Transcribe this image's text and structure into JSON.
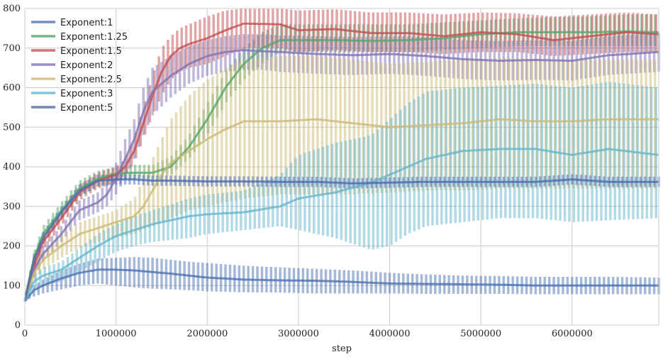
{
  "chart_data": {
    "type": "line",
    "title": "",
    "xlabel": "step",
    "ylabel": "",
    "xlim": [
      0,
      6950000
    ],
    "ylim": [
      0,
      800
    ],
    "xticks": [
      0,
      1000000,
      2000000,
      3000000,
      4000000,
      5000000,
      6000000
    ],
    "xtick_labels": [
      "0",
      "1000000",
      "2000000",
      "3000000",
      "4000000",
      "5000000",
      "6000000"
    ],
    "yticks": [
      0,
      100,
      200,
      300,
      400,
      500,
      600,
      700,
      800
    ],
    "ytick_labels": [
      "0",
      "100",
      "200",
      "300",
      "400",
      "500",
      "600",
      "700",
      "800"
    ],
    "grid": true,
    "legend_position": "top-left",
    "error_bars": "vertical range bars at each step",
    "series": [
      {
        "name": "Exponent:1",
        "color": "#4c72b0",
        "x": [
          0,
          100000,
          200000,
          400000,
          600000,
          800000,
          1000000,
          1200000,
          1400000,
          1600000,
          1800000,
          2000000,
          2400000,
          2800000,
          3200000,
          3600000,
          4000000,
          4400000,
          4800000,
          5200000,
          5600000,
          6000000,
          6400000,
          6950000
        ],
        "mean": [
          60,
          88,
          100,
          118,
          132,
          140,
          140,
          138,
          134,
          130,
          125,
          120,
          115,
          113,
          112,
          109,
          105,
          104,
          103,
          102,
          100,
          100,
          100,
          100
        ],
        "lower": [
          60,
          72,
          80,
          90,
          100,
          105,
          100,
          95,
          92,
          90,
          88,
          85,
          83,
          82,
          80,
          80,
          80,
          79,
          79,
          79,
          78,
          78,
          78,
          78
        ],
        "upper": [
          60,
          100,
          115,
          138,
          155,
          168,
          170,
          172,
          170,
          165,
          160,
          157,
          150,
          146,
          142,
          138,
          132,
          128,
          125,
          124,
          122,
          122,
          122,
          120
        ]
      },
      {
        "name": "Exponent:1.25",
        "color": "#55a868",
        "x": [
          0,
          100000,
          200000,
          400000,
          600000,
          800000,
          1000000,
          1200000,
          1400000,
          1600000,
          1800000,
          2000000,
          2200000,
          2400000,
          2600000,
          2800000,
          3000000,
          3400000,
          3800000,
          4200000,
          4600000,
          5000000,
          5400000,
          5800000,
          6200000,
          6600000,
          6950000
        ],
        "mean": [
          65,
          170,
          230,
          290,
          345,
          370,
          383,
          385,
          385,
          400,
          450,
          520,
          600,
          660,
          700,
          720,
          720,
          720,
          718,
          720,
          725,
          735,
          740,
          740,
          740,
          742,
          740
        ],
        "lower": [
          65,
          150,
          210,
          270,
          325,
          350,
          365,
          370,
          370,
          380,
          420,
          480,
          560,
          620,
          660,
          690,
          690,
          690,
          690,
          690,
          695,
          700,
          705,
          705,
          705,
          705,
          705
        ],
        "upper": [
          65,
          185,
          250,
          310,
          365,
          390,
          400,
          405,
          405,
          425,
          480,
          560,
          640,
          700,
          740,
          760,
          760,
          760,
          760,
          760,
          765,
          770,
          775,
          778,
          780,
          785,
          785
        ]
      },
      {
        "name": "Exponent:1.5",
        "color": "#c44e52",
        "x": [
          0,
          100000,
          200000,
          400000,
          600000,
          800000,
          1000000,
          1100000,
          1200000,
          1300000,
          1400000,
          1500000,
          1600000,
          1700000,
          1800000,
          2000000,
          2200000,
          2400000,
          2800000,
          3000000,
          3400000,
          3800000,
          4200000,
          4600000,
          5000000,
          5400000,
          5800000,
          6200000,
          6600000,
          6950000
        ],
        "mean": [
          60,
          150,
          210,
          270,
          335,
          365,
          380,
          400,
          440,
          510,
          580,
          640,
          680,
          700,
          710,
          725,
          745,
          762,
          760,
          745,
          748,
          738,
          738,
          730,
          740,
          735,
          720,
          730,
          740,
          735
        ],
        "lower": [
          60,
          130,
          190,
          250,
          315,
          345,
          360,
          380,
          410,
          470,
          530,
          580,
          620,
          640,
          650,
          660,
          680,
          700,
          700,
          690,
          695,
          690,
          690,
          685,
          690,
          690,
          680,
          685,
          690,
          690
        ],
        "upper": [
          60,
          170,
          230,
          290,
          355,
          385,
          400,
          420,
          470,
          550,
          630,
          700,
          730,
          750,
          760,
          780,
          795,
          800,
          800,
          795,
          798,
          790,
          790,
          785,
          790,
          788,
          780,
          785,
          790,
          785
        ]
      },
      {
        "name": "Exponent:2",
        "color": "#8172b2",
        "x": [
          0,
          100000,
          200000,
          400000,
          600000,
          800000,
          900000,
          1000000,
          1100000,
          1200000,
          1300000,
          1400000,
          1600000,
          1800000,
          2000000,
          2200000,
          2400000,
          2600000,
          2800000,
          3200000,
          3600000,
          4000000,
          4400000,
          4800000,
          5200000,
          5600000,
          6000000,
          6400000,
          6950000
        ],
        "mean": [
          60,
          140,
          180,
          230,
          290,
          310,
          330,
          370,
          420,
          470,
          540,
          590,
          630,
          660,
          680,
          690,
          695,
          692,
          690,
          685,
          682,
          685,
          680,
          672,
          668,
          670,
          668,
          682,
          690
        ],
        "lower": [
          60,
          120,
          160,
          210,
          265,
          285,
          300,
          330,
          370,
          420,
          480,
          530,
          575,
          610,
          630,
          640,
          645,
          645,
          640,
          635,
          632,
          635,
          630,
          622,
          618,
          620,
          618,
          632,
          640
        ],
        "upper": [
          60,
          160,
          200,
          250,
          315,
          335,
          360,
          410,
          470,
          520,
          600,
          650,
          680,
          705,
          720,
          730,
          735,
          735,
          732,
          730,
          728,
          730,
          728,
          720,
          718,
          720,
          718,
          730,
          738
        ]
      },
      {
        "name": "Exponent:2.5",
        "color": "#ccb974",
        "x": [
          0,
          100000,
          200000,
          400000,
          600000,
          800000,
          1000000,
          1200000,
          1300000,
          1400000,
          1500000,
          1600000,
          1800000,
          2000000,
          2200000,
          2400000,
          2800000,
          3200000,
          3600000,
          4000000,
          4400000,
          4800000,
          5200000,
          5600000,
          6000000,
          6400000,
          6950000
        ],
        "mean": [
          60,
          130,
          165,
          200,
          230,
          245,
          260,
          275,
          300,
          340,
          380,
          410,
          440,
          470,
          495,
          515,
          515,
          520,
          510,
          500,
          505,
          510,
          520,
          515,
          515,
          520,
          520
        ],
        "lower": [
          60,
          110,
          140,
          170,
          195,
          210,
          220,
          230,
          240,
          250,
          260,
          270,
          290,
          300,
          310,
          320,
          330,
          330,
          330,
          335,
          340,
          340,
          345,
          345,
          345,
          345,
          345
        ],
        "upper": [
          60,
          150,
          185,
          225,
          260,
          275,
          290,
          320,
          370,
          420,
          470,
          520,
          580,
          620,
          650,
          670,
          680,
          680,
          670,
          660,
          665,
          670,
          675,
          672,
          670,
          670,
          670
        ]
      },
      {
        "name": "Exponent:3",
        "color": "#64b5cd",
        "x": [
          0,
          100000,
          200000,
          400000,
          600000,
          800000,
          1000000,
          1200000,
          1400000,
          1600000,
          1800000,
          2000000,
          2400000,
          2800000,
          3000000,
          3400000,
          3800000,
          4000000,
          4200000,
          4400000,
          4800000,
          5200000,
          5600000,
          6000000,
          6400000,
          6950000
        ],
        "mean": [
          60,
          110,
          125,
          140,
          170,
          200,
          225,
          240,
          255,
          265,
          275,
          280,
          285,
          300,
          320,
          335,
          360,
          380,
          400,
          420,
          440,
          445,
          445,
          430,
          445,
          430
        ],
        "lower": [
          60,
          90,
          100,
          110,
          135,
          160,
          185,
          200,
          210,
          215,
          220,
          230,
          240,
          250,
          240,
          220,
          190,
          200,
          230,
          250,
          260,
          270,
          270,
          260,
          265,
          270
        ],
        "upper": [
          60,
          130,
          145,
          160,
          195,
          230,
          255,
          275,
          290,
          305,
          320,
          330,
          340,
          380,
          430,
          460,
          480,
          520,
          560,
          590,
          600,
          605,
          610,
          600,
          615,
          600
        ]
      },
      {
        "name": "Exponent:5",
        "color": "#4c6ab0",
        "x": [
          0,
          100000,
          200000,
          400000,
          600000,
          800000,
          1000000,
          1200000,
          1400000,
          1600000,
          2000000,
          2400000,
          2800000,
          3200000,
          3600000,
          4000000,
          4400000,
          4800000,
          5200000,
          5600000,
          6000000,
          6400000,
          6950000
        ],
        "mean": [
          60,
          165,
          220,
          285,
          340,
          365,
          368,
          368,
          365,
          365,
          363,
          363,
          362,
          362,
          358,
          360,
          362,
          362,
          362,
          362,
          368,
          362,
          362
        ],
        "lower": [
          60,
          150,
          205,
          270,
          325,
          350,
          355,
          355,
          352,
          352,
          350,
          350,
          349,
          349,
          345,
          347,
          349,
          349,
          349,
          349,
          355,
          349,
          349
        ],
        "upper": [
          60,
          180,
          235,
          300,
          355,
          380,
          381,
          381,
          378,
          378,
          376,
          376,
          375,
          375,
          371,
          373,
          375,
          375,
          375,
          375,
          381,
          375,
          375
        ]
      }
    ]
  }
}
